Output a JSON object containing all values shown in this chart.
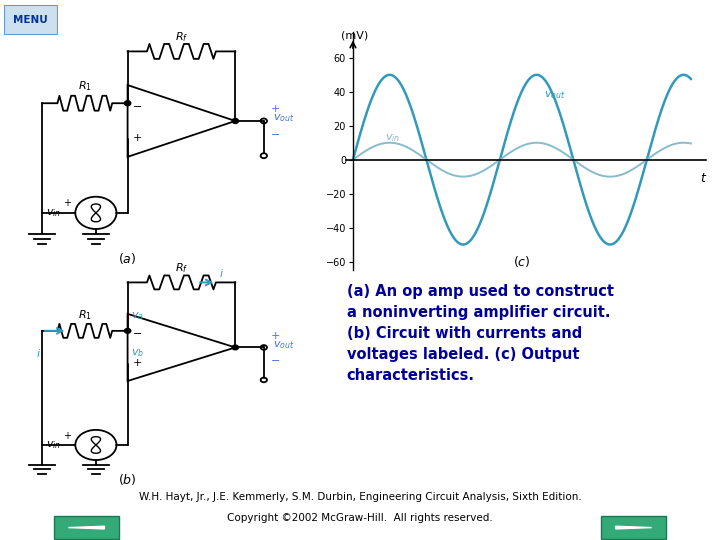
{
  "bg_color": "#ffffff",
  "menu_text": "MENU",
  "menu_bg": "#cce0f0",
  "menu_border": "#6699cc",
  "menu_text_color": "#003399",
  "title_color": "#000099",
  "footer_text1": "W.H. Hayt, Jr., J.E. Kemmerly, S.M. Durbin, Engineering Circuit Analysis, Sixth Edition.",
  "footer_text2": "Copyright ©2002 McGraw-Hill.  All rights reserved.",
  "footer_color": "#000000",
  "nav_button_color": "#33aa77",
  "wave_color_out": "#3399bb",
  "wave_color_in": "#88bbcc",
  "wave_amp_out": 50,
  "wave_amp_in": 10,
  "plot_yticks": [
    -60,
    -40,
    -20,
    0,
    20,
    40,
    60
  ],
  "plot_ylim": [
    -65,
    75
  ],
  "text_lines": [
    "(a) An op amp used to construct",
    "a noninverting amplifier circuit.",
    "(b) Circuit with currents and",
    "voltages labeled. (c) Output",
    "characteristics."
  ]
}
